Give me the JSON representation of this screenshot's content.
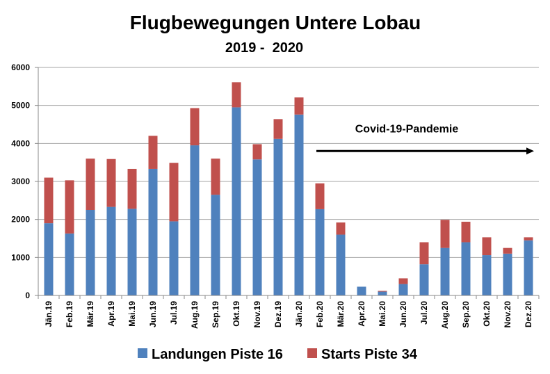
{
  "chart_data": {
    "type": "bar",
    "stacked": true,
    "title": "Flugbewegungen Untere Lobau",
    "subtitle": "2019 -  2020",
    "xlabel": "",
    "ylabel": "",
    "ylim": [
      0,
      6000
    ],
    "yticks": [
      0,
      1000,
      2000,
      3000,
      4000,
      5000,
      6000
    ],
    "grid": true,
    "legend_position": "bottom",
    "categories": [
      "Jän.19",
      "Feb.19",
      "Mär.19",
      "Apr.19",
      "Mai.19",
      "Jun.19",
      "Jul.19",
      "Aug.19",
      "Sep.19",
      "Okt.19",
      "Nov.19",
      "Dez.19",
      "Jän.20",
      "Feb.20",
      "Mär.20",
      "Apr.20",
      "Mai.20",
      "Jun.20",
      "Jul.20",
      "Aug.20",
      "Sep.20",
      "Okt.20",
      "Nov.20",
      "Dez.20"
    ],
    "series": [
      {
        "name": "Landungen Piste 16",
        "color": "#4f81bd",
        "values": [
          1900,
          1630,
          2250,
          2330,
          2280,
          3330,
          1950,
          3950,
          2650,
          4950,
          3580,
          4120,
          4760,
          2270,
          1600,
          230,
          100,
          300,
          820,
          1250,
          1400,
          1060,
          1100,
          1450
        ]
      },
      {
        "name": "Starts Piste 34",
        "color": "#c0504d",
        "values": [
          1200,
          1400,
          1350,
          1260,
          1050,
          870,
          1540,
          980,
          950,
          660,
          400,
          520,
          450,
          680,
          320,
          0,
          20,
          150,
          580,
          740,
          540,
          470,
          150,
          80
        ]
      }
    ],
    "annotation": {
      "text": "Covid-19-Pandemie",
      "arrow_from_category": "Feb.20",
      "arrow_to_category": "Dez.20",
      "y_value": 3800
    }
  }
}
